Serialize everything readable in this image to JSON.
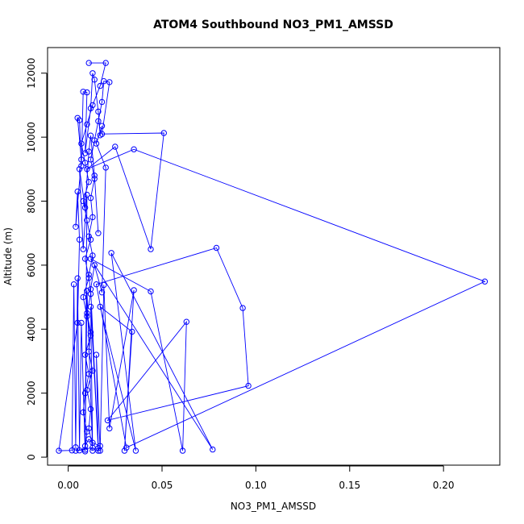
{
  "chart_data": {
    "type": "line",
    "title": "ATOM4 Southbound NO3_PM1_AMSSD",
    "xlabel": "NO3_PM1_AMSSD",
    "ylabel": "Altitude (m)",
    "xlim": [
      -0.011,
      0.23
    ],
    "ylim": [
      -250,
      12800
    ],
    "xticks": [
      0.0,
      0.05,
      0.1,
      0.15,
      0.2
    ],
    "xtick_labels": [
      "0.00",
      "0.05",
      "0.10",
      "0.15",
      "0.20"
    ],
    "yticks": [
      0,
      2000,
      4000,
      6000,
      8000,
      10000,
      12000
    ],
    "ytick_labels": [
      "0",
      "2000",
      "4000",
      "6000",
      "8000",
      "10000",
      "12000"
    ],
    "grid": false,
    "legend": "none",
    "series": [
      {
        "color": "#0000ff",
        "marker": "open-circle",
        "points": [
          [
            0.011,
            12320
          ],
          [
            0.02,
            12320
          ],
          [
            0.017,
            11600
          ],
          [
            0.013,
            11000
          ],
          [
            0.01,
            10400
          ],
          [
            0.007,
            9800
          ],
          [
            0.009,
            9200
          ],
          [
            0.011,
            8600
          ],
          [
            0.008,
            8000
          ],
          [
            0.01,
            7400
          ],
          [
            0.012,
            6800
          ],
          [
            0.009,
            6200
          ],
          [
            0.011,
            5600
          ],
          [
            0.008,
            5000
          ],
          [
            0.01,
            4400
          ],
          [
            0.012,
            3800
          ],
          [
            0.009,
            3200
          ],
          [
            0.011,
            2600
          ],
          [
            0.009,
            2000
          ],
          [
            0.008,
            1400
          ],
          [
            0.01,
            800
          ],
          [
            0.009,
            230
          ],
          [
            0.004,
            200
          ],
          [
            0.013,
            300
          ],
          [
            0.011,
            900
          ],
          [
            0.012,
            1500
          ],
          [
            0.01,
            2100
          ],
          [
            0.013,
            2700
          ],
          [
            0.011,
            3300
          ],
          [
            0.012,
            3900
          ],
          [
            0.01,
            4500
          ],
          [
            0.012,
            5100
          ],
          [
            0.011,
            5700
          ],
          [
            0.013,
            6300
          ],
          [
            0.011,
            6900
          ],
          [
            0.013,
            7500
          ],
          [
            0.012,
            8100
          ],
          [
            0.014,
            8700
          ],
          [
            0.012,
            9300
          ],
          [
            0.014,
            9900
          ],
          [
            0.016,
            10500
          ],
          [
            0.018,
            11100
          ],
          [
            0.019,
            11750
          ],
          [
            0.022,
            11720
          ],
          [
            0.018,
            10100
          ],
          [
            0.051,
            10130
          ],
          [
            0.044,
            6500
          ],
          [
            0.025,
            9700
          ],
          [
            0.01,
            9000
          ],
          [
            0.035,
            9620
          ],
          [
            0.222,
            5490
          ],
          [
            0.031,
            300
          ],
          [
            0.015,
            5400
          ],
          [
            0.079,
            6540
          ],
          [
            0.093,
            4660
          ],
          [
            0.096,
            2230
          ],
          [
            0.021,
            1150
          ],
          [
            0.063,
            4230
          ],
          [
            0.061,
            200
          ],
          [
            0.044,
            5180
          ],
          [
            0.012,
            6200
          ],
          [
            0.077,
            240
          ],
          [
            0.023,
            6380
          ],
          [
            0.036,
            200
          ],
          [
            0.017,
            4700
          ],
          [
            0.034,
            3920
          ],
          [
            0.03,
            200
          ],
          [
            0.035,
            5220
          ],
          [
            0.022,
            900
          ],
          [
            0.019,
            5380
          ],
          [
            0.017,
            200
          ],
          [
            0.015,
            3200
          ],
          [
            0.016,
            280
          ],
          [
            0.012,
            4700
          ],
          [
            0.013,
            200
          ],
          [
            0.01,
            5200
          ],
          [
            0.009,
            180
          ],
          [
            0.007,
            4200
          ],
          [
            0.006,
            210
          ],
          [
            0.005,
            5590
          ],
          [
            0.004,
            310
          ],
          [
            0.003,
            5400
          ],
          [
            0.002,
            210
          ],
          [
            -0.005,
            200
          ],
          [
            0.005,
            4200
          ],
          [
            0.006,
            6800
          ],
          [
            0.005,
            8300
          ],
          [
            0.004,
            7200
          ],
          [
            0.007,
            9300
          ],
          [
            0.005,
            10600
          ],
          [
            0.006,
            10530
          ],
          [
            0.007,
            9100
          ],
          [
            0.008,
            11420
          ],
          [
            0.01,
            11400
          ],
          [
            0.009,
            9500
          ],
          [
            0.012,
            10900
          ],
          [
            0.013,
            12000
          ],
          [
            0.014,
            11800
          ],
          [
            0.016,
            10800
          ],
          [
            0.017,
            10060
          ],
          [
            0.018,
            10350
          ],
          [
            0.015,
            9800
          ],
          [
            0.02,
            9050
          ],
          [
            0.018,
            5150
          ],
          [
            0.014,
            6000
          ],
          [
            0.012,
            5250
          ],
          [
            0.016,
            200
          ],
          [
            0.017,
            350
          ],
          [
            0.013,
            450
          ],
          [
            0.011,
            560
          ],
          [
            0.009,
            350
          ],
          [
            0.01,
            8200
          ],
          [
            0.008,
            6500
          ],
          [
            0.006,
            9000
          ],
          [
            0.009,
            7800
          ],
          [
            0.011,
            9550
          ],
          [
            0.012,
            10050
          ],
          [
            0.014,
            8800
          ],
          [
            0.016,
            7000
          ]
        ]
      }
    ]
  }
}
